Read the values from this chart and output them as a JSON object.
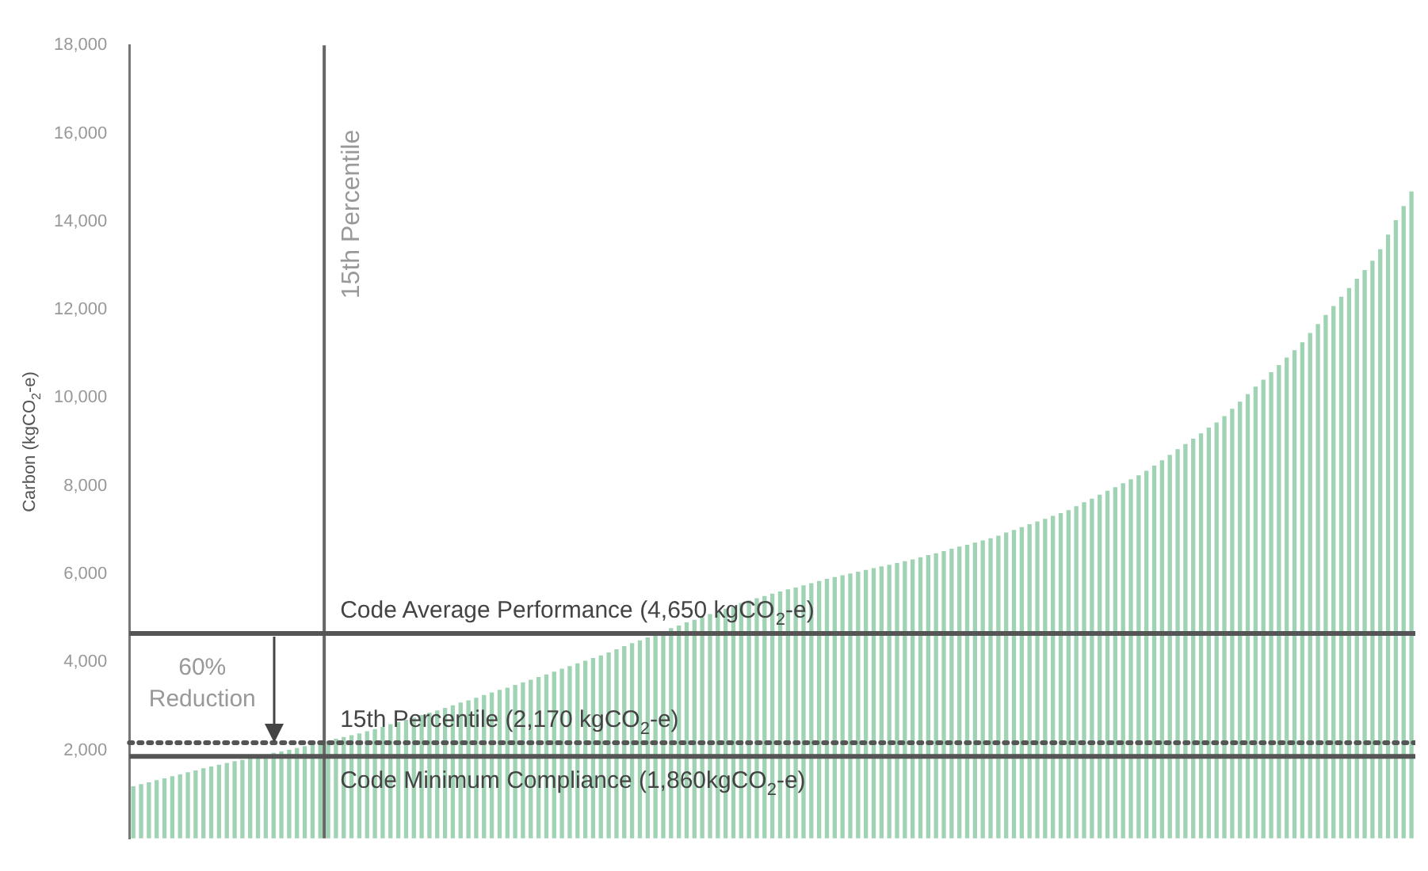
{
  "chart_data": {
    "type": "bar",
    "ylabel": "Carbon (kgCO$_{2}$-e)",
    "categories": [
      null,
      null,
      null,
      null,
      null,
      null,
      null,
      null,
      null,
      null,
      null,
      null,
      null,
      null,
      null,
      null,
      null,
      null,
      null,
      null,
      null,
      null,
      null,
      null,
      null,
      null,
      null,
      null,
      null,
      null,
      null,
      null,
      null,
      null,
      null,
      null,
      null,
      null,
      null,
      null,
      null,
      null,
      null,
      null,
      null,
      null,
      null,
      null,
      null,
      null,
      null,
      null,
      null,
      null,
      null,
      null,
      null,
      null,
      null,
      null,
      null,
      null,
      null,
      null,
      null,
      null,
      null,
      null,
      null,
      null,
      null,
      null,
      null,
      null,
      null,
      null,
      null,
      null,
      null,
      null,
      null,
      null,
      null,
      null,
      null,
      null,
      null,
      null,
      null,
      null,
      null,
      null,
      null,
      null,
      null,
      null,
      null,
      null,
      null,
      null,
      null,
      null,
      null,
      null,
      null,
      null,
      null,
      null,
      null,
      null,
      null,
      null,
      null,
      null,
      null,
      null,
      null,
      null,
      null,
      null,
      null,
      null,
      null,
      null,
      null,
      null,
      null,
      null,
      null,
      null,
      null,
      null,
      null,
      null,
      null,
      null,
      null,
      null,
      null,
      null,
      null,
      null,
      null,
      null,
      null,
      null,
      null,
      null,
      null,
      null,
      null,
      null,
      null,
      null,
      null,
      null,
      null,
      null,
      null,
      null,
      null,
      null,
      null,
      null,
      null
    ],
    "values": [
      1170,
      1220,
      1260,
      1310,
      1350,
      1400,
      1440,
      1490,
      1530,
      1580,
      1620,
      1660,
      1700,
      1740,
      1770,
      1810,
      1850,
      1890,
      1930,
      1960,
      2000,
      2040,
      2080,
      2120,
      2160,
      2200,
      2250,
      2290,
      2330,
      2370,
      2420,
      2470,
      2520,
      2580,
      2630,
      2680,
      2730,
      2790,
      2840,
      2890,
      2950,
      3010,
      3070,
      3120,
      3180,
      3240,
      3300,
      3360,
      3410,
      3470,
      3530,
      3590,
      3650,
      3710,
      3770,
      3840,
      3900,
      3960,
      4020,
      4080,
      4140,
      4210,
      4280,
      4350,
      4420,
      4480,
      4550,
      4620,
      4690,
      4760,
      4820,
      4890,
      4950,
      5010,
      5080,
      5140,
      5200,
      5260,
      5330,
      5390,
      5440,
      5490,
      5540,
      5590,
      5640,
      5680,
      5730,
      5780,
      5830,
      5880,
      5920,
      5960,
      6000,
      6040,
      6080,
      6120,
      6160,
      6200,
      6240,
      6280,
      6320,
      6370,
      6420,
      6460,
      6510,
      6560,
      6610,
      6650,
      6700,
      6750,
      6800,
      6860,
      6930,
      6990,
      7050,
      7120,
      7180,
      7240,
      7310,
      7370,
      7440,
      7530,
      7620,
      7700,
      7790,
      7880,
      7960,
      8050,
      8140,
      8230,
      8330,
      8450,
      8570,
      8690,
      8820,
      8940,
      9060,
      9180,
      9310,
      9430,
      9570,
      9740,
      9900,
      10070,
      10240,
      10400,
      10570,
      10730,
      10900,
      11070,
      11250,
      11460,
      11660,
      11870,
      12070,
      12280,
      12480,
      12690,
      12890,
      13100,
      13360,
      13690,
      14020,
      14340,
      14670
    ],
    "color": "#9fd3b3",
    "ylim": [
      0,
      18000
    ],
    "yticks": [
      {
        "value": 2000,
        "label": "2,000"
      },
      {
        "value": 4000,
        "label": "4,000"
      },
      {
        "value": 6000,
        "label": "6,000"
      },
      {
        "value": 8000,
        "label": "8,000"
      },
      {
        "value": 10000,
        "label": "10,000"
      },
      {
        "value": 12000,
        "label": "12,000"
      },
      {
        "value": 14000,
        "label": "14,000"
      },
      {
        "value": 16000,
        "label": "16,000"
      },
      {
        "value": 18000,
        "label": "18,000"
      }
    ],
    "tick_labels": "y",
    "grid": false,
    "ref_lines": [
      {
        "axis": "y",
        "value": 4650,
        "label": "Code Average Performance (4,650 kgCO$_{2}$-e)",
        "color": "#555555"
      },
      {
        "axis": "y",
        "value": 2170,
        "label": "15th Percentile (2,170 kgCO$_{2}$-e)",
        "color": "#555555",
        "line_style": "dotted"
      },
      {
        "axis": "y",
        "value": 1860,
        "label": "Code Minimum Compliance (1,860kgCO$_{2}$-e)",
        "color": "#555555"
      }
    ],
    "annotations": [
      "15th Percentile",
      "60% Reduction"
    ]
  }
}
